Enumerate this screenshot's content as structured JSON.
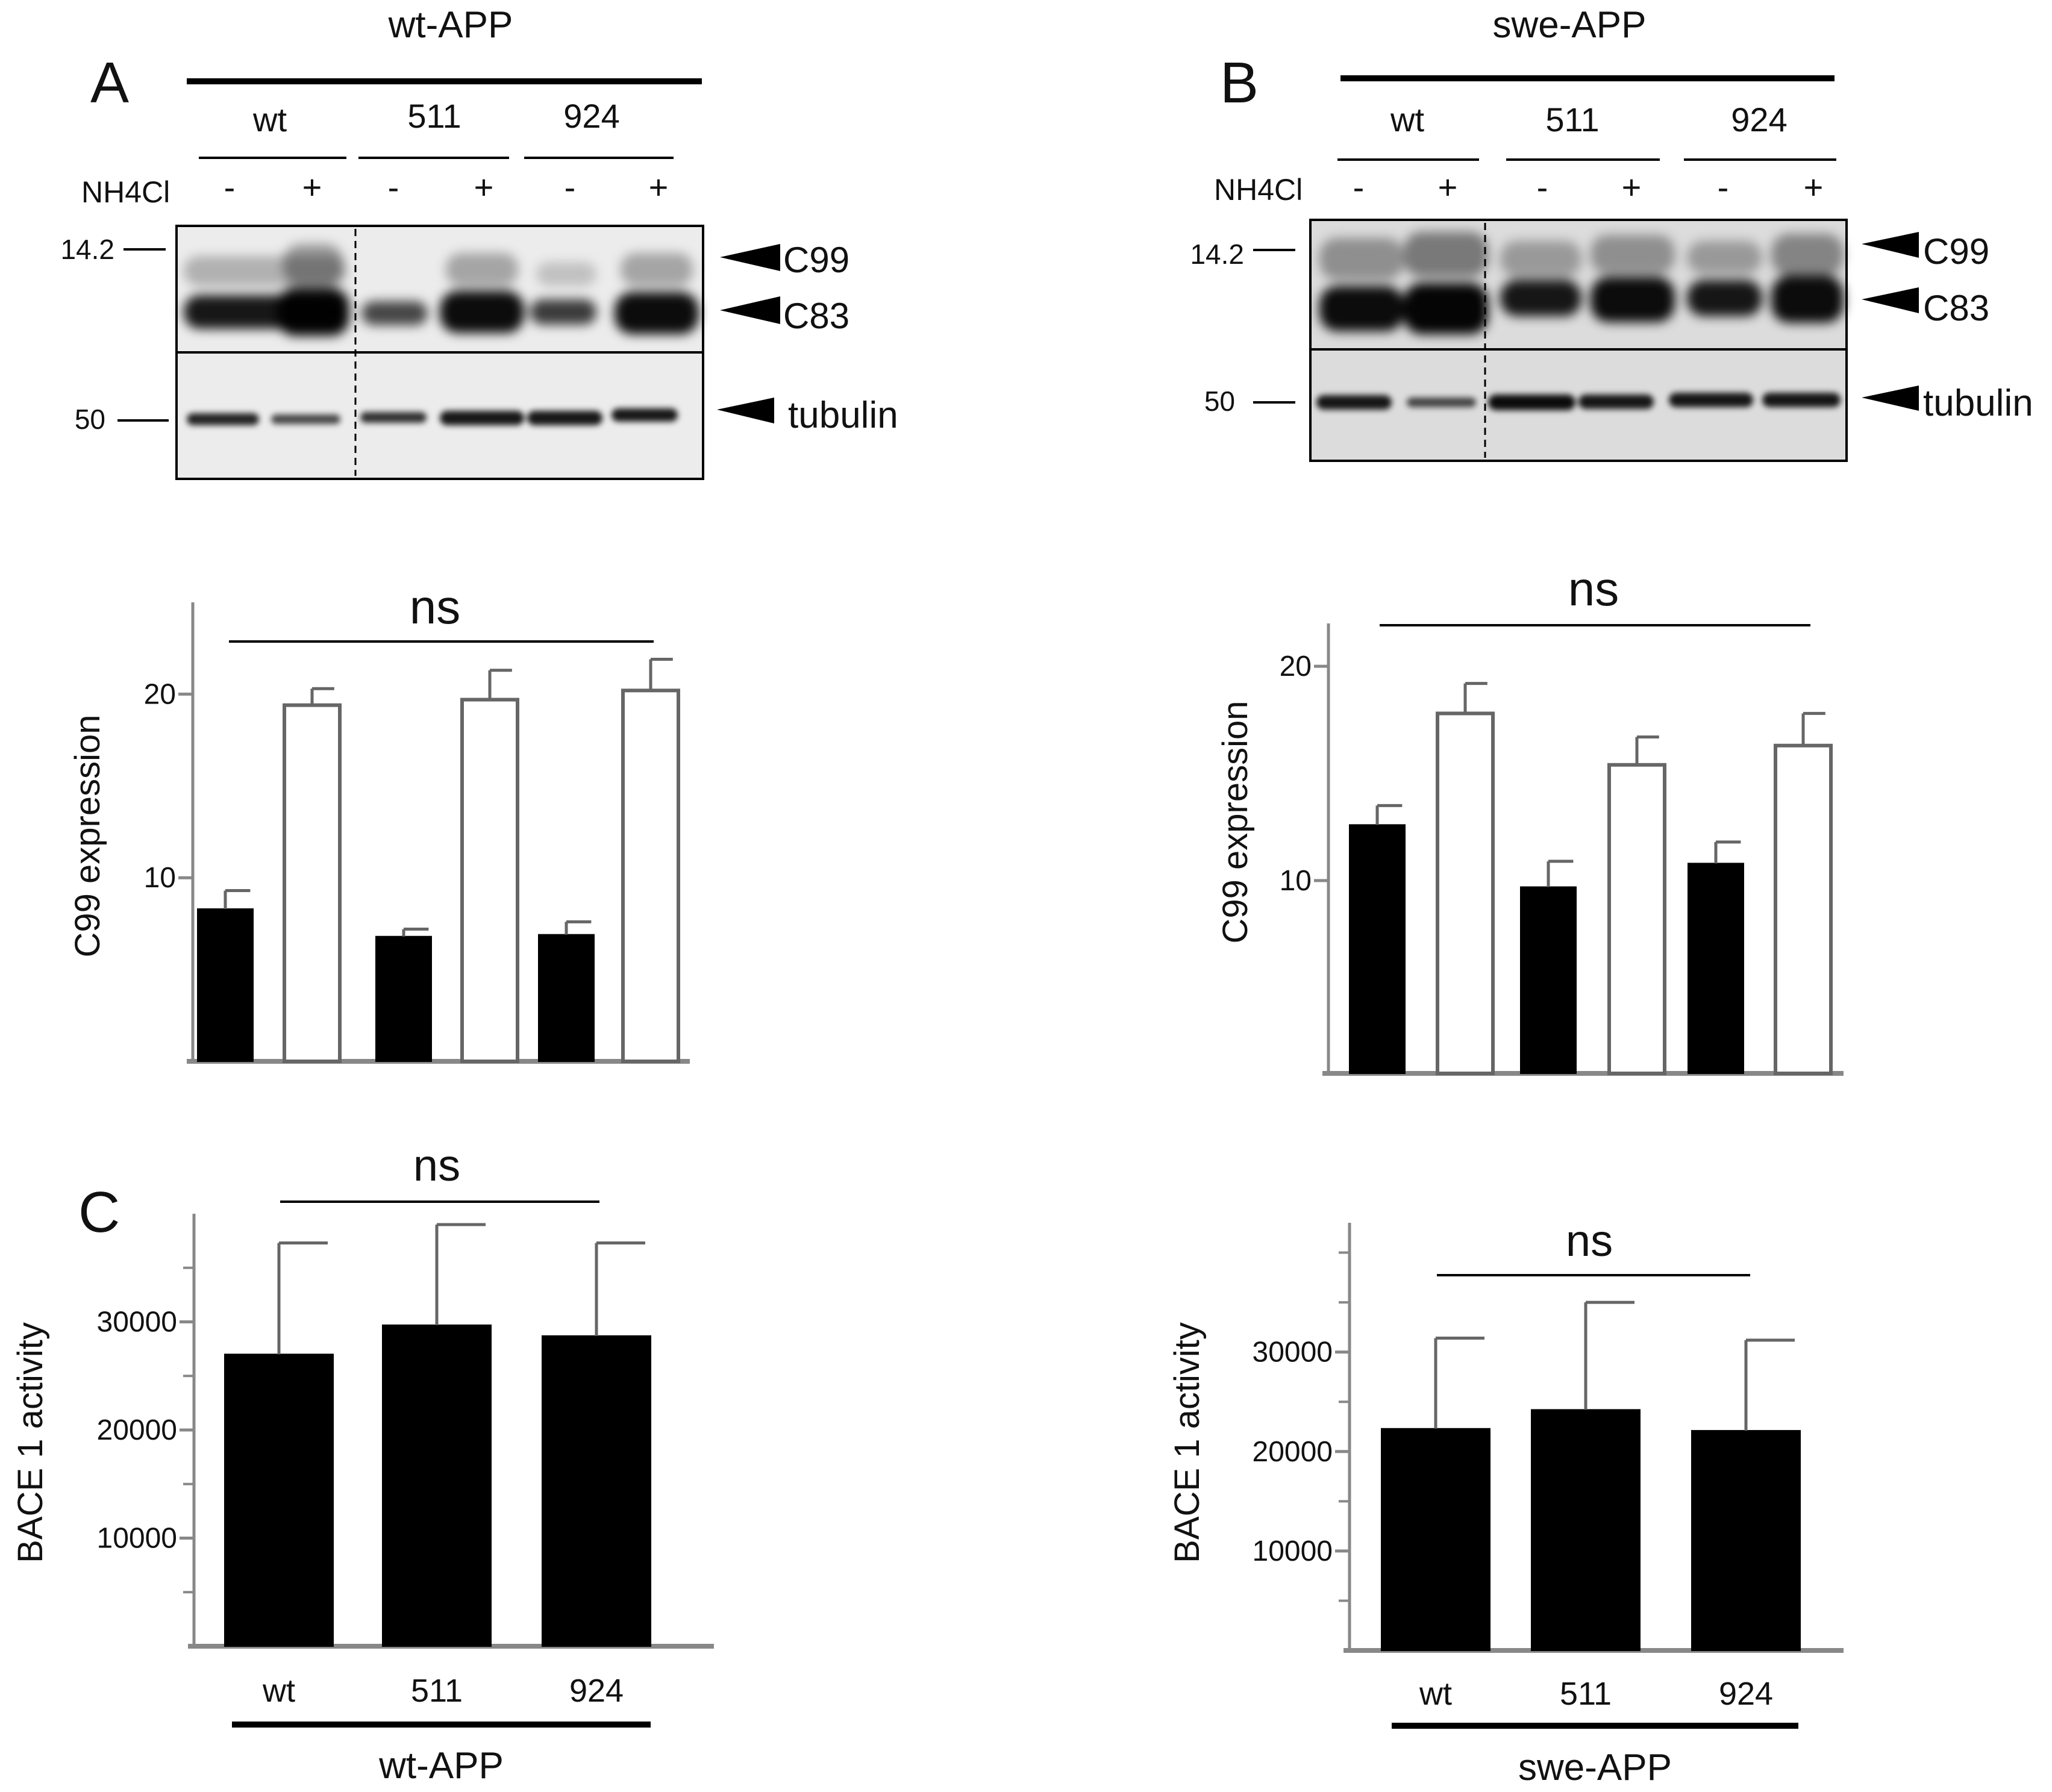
{
  "panels": {
    "a": {
      "letter": "A",
      "header": "wt-APP"
    },
    "b": {
      "letter": "B",
      "header": "swe-APP"
    },
    "c": {
      "letter": "C"
    }
  },
  "blot": {
    "treatment_label": "NH4Cl",
    "treatment_signs": [
      "-",
      "+",
      "-",
      "+",
      "-",
      "+"
    ],
    "groups": [
      "wt",
      "511",
      "924"
    ],
    "markers": {
      "upper": "14.2",
      "lower": "50"
    },
    "bands": [
      "C99",
      "C83",
      "tubulin"
    ]
  },
  "colors": {
    "filled_bar": "#000000",
    "open_bar": "#ffffff",
    "axis": "#888888",
    "blot_bg": "#ececec",
    "blot_bg_b": "#dcdcdc"
  },
  "chart_data": [
    {
      "id": "a-c99",
      "type": "bar",
      "categories": [
        "wt -",
        "wt +",
        "511 -",
        "511 +",
        "924 -",
        "924 +"
      ],
      "values": [
        8.3,
        19.4,
        6.8,
        19.7,
        6.9,
        20.2
      ],
      "errors": [
        1.0,
        0.9,
        0.4,
        1.6,
        0.7,
        1.7
      ],
      "fills": [
        "filled",
        "open",
        "filled",
        "open",
        "filled",
        "open"
      ],
      "ylabel": "C99 expression",
      "ylim": [
        0,
        25
      ],
      "yticks": [
        10,
        20
      ],
      "significance": "ns"
    },
    {
      "id": "b-c99",
      "type": "bar",
      "categories": [
        "wt -",
        "wt +",
        "511 -",
        "511 +",
        "924 -",
        "924 +"
      ],
      "values": [
        12.6,
        17.8,
        9.7,
        15.4,
        10.8,
        16.3
      ],
      "errors": [
        0.9,
        1.4,
        1.2,
        1.3,
        1.0,
        1.5
      ],
      "fills": [
        "filled",
        "open",
        "filled",
        "open",
        "filled",
        "open"
      ],
      "ylabel": "C99 expression",
      "ylim": [
        1,
        22
      ],
      "yticks": [
        10,
        20
      ],
      "significance": "ns"
    },
    {
      "id": "c-bace-wt",
      "type": "bar",
      "categories": [
        "wt",
        "511",
        "924"
      ],
      "values": [
        27000,
        29700,
        28700
      ],
      "errors": [
        10300,
        9300,
        8600
      ],
      "ylabel": "BACE 1  activity",
      "ylim": [
        0,
        40000
      ],
      "yticks": [
        10000,
        20000,
        30000
      ],
      "significance": "ns",
      "group_label": "wt-APP"
    },
    {
      "id": "c-bace-swe",
      "type": "bar",
      "categories": [
        "wt",
        "511",
        "924"
      ],
      "values": [
        22300,
        24200,
        22100
      ],
      "errors": [
        9100,
        10800,
        9100
      ],
      "ylabel": "BACE 1  activity",
      "ylim": [
        0,
        43000
      ],
      "yticks": [
        10000,
        20000,
        30000
      ],
      "significance": "ns",
      "group_label": "swe-APP"
    }
  ]
}
